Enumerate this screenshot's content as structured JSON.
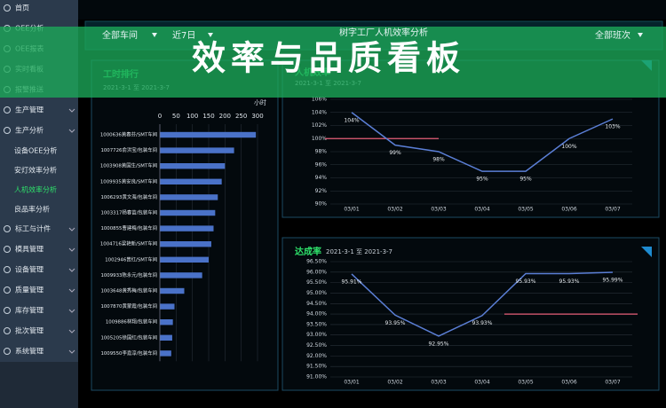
{
  "sidebar": {
    "items": [
      {
        "label": "首页"
      },
      {
        "label": "OEE分析"
      },
      {
        "label": "OEE报表"
      },
      {
        "label": "实时看板"
      },
      {
        "label": "报警推送"
      },
      {
        "label": "生产管理"
      },
      {
        "label": "生产分析",
        "children": [
          "设备OEE分析",
          "安灯效率分析",
          "人机效率分析",
          "良品率分析"
        ],
        "active_child": 2
      },
      {
        "label": "标工与计件"
      },
      {
        "label": "模具管理"
      },
      {
        "label": "设备管理"
      },
      {
        "label": "质量管理"
      },
      {
        "label": "库存管理"
      },
      {
        "label": "批次管理"
      },
      {
        "label": "系统管理"
      }
    ]
  },
  "topbar": {
    "filters": [
      "全部车间",
      "近7日"
    ],
    "title": "树字工厂人机效率分析",
    "shift": "全部班次"
  },
  "banner": {
    "title": "效率与品质看板"
  },
  "chart_data": [
    {
      "type": "bar",
      "orientation": "horizontal",
      "title": "工时排行",
      "subtitle": "2021-3-1 至 2021-3-7",
      "unit": "小时",
      "categories": [
        "1000636黄春芬/SMT车间",
        "1007726俞洪宝/包装车间",
        "1003908黄国生/SMT车间",
        "1009935黄安良/SMT车间",
        "1006293黄文海/包装车间",
        "1003317杨春苗/包装车间",
        "1000855曹建梅/包装车间",
        "1004716梁艳新/SMT车间",
        "1002946曾红/SMT车间",
        "1009933陈永元/包装车间",
        "1003648黄秀梅/包装车间",
        "1007870黄蒙霞/包装车间",
        "1009886林翔/包装车间",
        "1005205徐国红/包装车间",
        "1009550李嘉淳/包装车间"
      ],
      "values": [
        295,
        228,
        200,
        190,
        178,
        170,
        165,
        158,
        150,
        130,
        75,
        45,
        40,
        38,
        35
      ],
      "color": "#4a72c8",
      "xlim": [
        0,
        300
      ],
      "xticks": [
        0,
        50,
        100,
        150,
        200,
        250,
        300
      ],
      "grid": true
    },
    {
      "type": "line",
      "title": "人机效率",
      "subtitle": "2021-3-1 至 2021-3-7",
      "categories": [
        "03/01",
        "03/02",
        "03/03",
        "03/04",
        "03/05",
        "03/06",
        "03/07"
      ],
      "values": [
        104,
        99,
        98,
        95,
        95,
        100,
        103
      ],
      "value_labels": [
        "104%",
        "99%",
        "98%",
        "95%",
        "95%",
        "100%",
        "103%"
      ],
      "color": "#5b7fd6",
      "target": 100,
      "target_color": "#e8607a",
      "ylim": [
        90,
        106
      ],
      "yticks": [
        {
          "value": 90,
          "label": "90%"
        },
        {
          "value": 92,
          "label": "92%"
        },
        {
          "value": 94,
          "label": "94%"
        },
        {
          "value": 96,
          "label": "96%"
        },
        {
          "value": 98,
          "label": "98%"
        },
        {
          "value": 100,
          "label": "100%"
        },
        {
          "value": 102,
          "label": "102%"
        },
        {
          "value": 104,
          "label": "104%"
        },
        {
          "value": 106,
          "label": "106%"
        }
      ],
      "grid": true
    },
    {
      "type": "line",
      "title": "达成率",
      "subtitle": "2021-3-1 至 2021-3-7",
      "categories": [
        "03/01",
        "03/02",
        "03/03",
        "03/04",
        "03/05",
        "03/06",
        "03/07"
      ],
      "values": [
        95.91,
        93.95,
        92.95,
        93.93,
        95.93,
        95.93,
        95.99
      ],
      "value_labels": [
        "95.91%",
        "93.95%",
        "92.95%",
        "93.93%",
        "95.93%",
        "95.93%",
        "95.99%"
      ],
      "color": "#5b7fd6",
      "target": 94,
      "target_color": "#e8607a",
      "ylim": [
        91,
        96.5
      ],
      "yticks": [
        {
          "value": 91,
          "label": "91.00%"
        },
        {
          "value": 91.5,
          "label": "91.50%"
        },
        {
          "value": 92,
          "label": "92.00%"
        },
        {
          "value": 92.5,
          "label": "92.50%"
        },
        {
          "value": 93,
          "label": "93.00%"
        },
        {
          "value": 93.5,
          "label": "93.50%"
        },
        {
          "value": 94,
          "label": "94.00%"
        },
        {
          "value": 94.5,
          "label": "94.50%"
        },
        {
          "value": 95,
          "label": "95.00%"
        },
        {
          "value": 95.5,
          "label": "95.50%"
        },
        {
          "value": 96,
          "label": "96.00%"
        },
        {
          "value": 96.5,
          "label": "96.50%"
        }
      ],
      "grid": true
    }
  ]
}
